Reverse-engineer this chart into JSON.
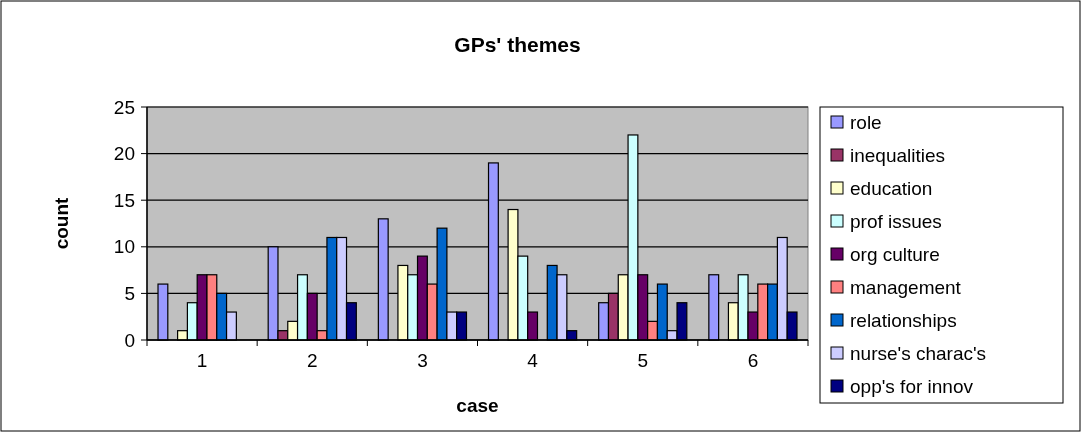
{
  "chart_data": {
    "type": "bar",
    "title": "GPs' themes",
    "xlabel": "case",
    "ylabel": "count",
    "categories": [
      "1",
      "2",
      "3",
      "4",
      "5",
      "6"
    ],
    "series": [
      {
        "name": "role",
        "color": "#9999ff",
        "values": [
          6,
          10,
          13,
          19,
          4,
          7
        ]
      },
      {
        "name": "inequalities",
        "color": "#993366",
        "values": [
          0,
          1,
          0,
          0,
          5,
          0
        ]
      },
      {
        "name": "education",
        "color": "#ffffcc",
        "values": [
          1,
          2,
          8,
          14,
          7,
          4
        ]
      },
      {
        "name": "prof issues",
        "color": "#ccffff",
        "values": [
          4,
          7,
          7,
          9,
          22,
          7
        ]
      },
      {
        "name": "org culture",
        "color": "#660066",
        "values": [
          7,
          5,
          9,
          3,
          7,
          3
        ]
      },
      {
        "name": "management",
        "color": "#ff8080",
        "values": [
          7,
          1,
          6,
          0,
          2,
          6
        ]
      },
      {
        "name": "relationships",
        "color": "#0066cc",
        "values": [
          5,
          11,
          12,
          8,
          6,
          6
        ]
      },
      {
        "name": "nurse's charac's",
        "color": "#ccccff",
        "values": [
          3,
          11,
          3,
          7,
          1,
          11
        ]
      },
      {
        "name": "opp's for innov",
        "color": "#000080",
        "values": [
          0,
          4,
          3,
          1,
          4,
          3
        ]
      }
    ],
    "ylim": [
      0,
      25
    ],
    "yticks": [
      0,
      5,
      10,
      15,
      20,
      25
    ],
    "grid": "y",
    "legend": "right"
  }
}
